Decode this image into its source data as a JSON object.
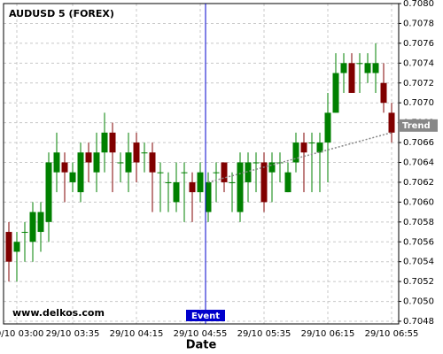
{
  "chart_data": {
    "type": "candlestick",
    "title": "AUDUSD 5 (FOREX)",
    "watermark": "www.delkos.com",
    "x_label": "Date",
    "categories": [
      null,
      "29/10 03:00",
      null,
      null,
      null,
      null,
      null,
      null,
      "29/10 03:35",
      null,
      null,
      null,
      null,
      null,
      null,
      null,
      "29/10 04:15",
      null,
      null,
      null,
      null,
      null,
      null,
      null,
      "29/10 04:55",
      null,
      null,
      null,
      null,
      null,
      null,
      null,
      "29/10 05:35",
      null,
      null,
      null,
      null,
      null,
      null,
      null,
      "29/10 06:15",
      null,
      null,
      null,
      null,
      null,
      null,
      null,
      "29/10 06:55"
    ],
    "open": [
      0.7057,
      0.7055,
      0.7057,
      0.7056,
      0.7057,
      0.7058,
      0.7063,
      0.7064,
      0.7062,
      0.7061,
      0.7065,
      0.7063,
      0.7065,
      0.7067,
      0.7064,
      0.7063,
      0.7066,
      0.7065,
      0.7065,
      0.7063,
      0.7062,
      0.706,
      0.7063,
      0.7062,
      0.7061,
      0.7059,
      0.7063,
      0.7064,
      0.7062,
      0.7059,
      0.7062,
      0.7064,
      0.7064,
      0.7063,
      0.7064,
      0.7061,
      0.7064,
      0.7066,
      0.7066,
      0.7065,
      0.7066,
      0.7069,
      0.7073,
      0.7074,
      0.7074,
      0.7073,
      0.7073,
      0.7072,
      0.7069
    ],
    "high": [
      0.7058,
      0.7057,
      0.7058,
      0.706,
      0.706,
      0.7065,
      0.7067,
      0.7065,
      0.7064,
      0.7066,
      0.7066,
      0.7067,
      0.7069,
      0.7068,
      0.7065,
      0.7067,
      0.7067,
      0.7066,
      0.7066,
      0.7064,
      0.7063,
      0.7064,
      0.7064,
      0.7063,
      0.7064,
      0.7063,
      0.7064,
      0.7064,
      0.7063,
      0.7065,
      0.7065,
      0.7065,
      0.7065,
      0.7065,
      0.7065,
      0.7064,
      0.7067,
      0.7067,
      0.7067,
      0.7067,
      0.7071,
      0.7075,
      0.7075,
      0.7075,
      0.7075,
      0.7075,
      0.7076,
      0.7074,
      0.707
    ],
    "low": [
      0.7052,
      0.7052,
      0.7054,
      0.7054,
      0.7055,
      0.7056,
      0.7061,
      0.706,
      0.7061,
      0.706,
      0.7062,
      0.7061,
      0.7063,
      0.7061,
      0.7062,
      0.7061,
      0.7062,
      0.7063,
      0.7059,
      0.7059,
      0.7059,
      0.7059,
      0.7058,
      0.7058,
      0.706,
      0.7058,
      0.706,
      0.7061,
      0.7059,
      0.7058,
      0.706,
      0.7061,
      0.7059,
      0.706,
      0.7062,
      0.7061,
      0.7063,
      0.7061,
      0.7061,
      0.7061,
      0.7062,
      0.7069,
      0.7071,
      0.7071,
      0.7071,
      0.7072,
      0.7071,
      0.7069,
      0.7066
    ],
    "close": [
      0.7054,
      0.7056,
      0.7057,
      0.7059,
      0.7059,
      0.7064,
      0.7065,
      0.7063,
      0.7063,
      0.7065,
      0.7064,
      0.7065,
      0.7067,
      0.7065,
      0.7064,
      0.7065,
      0.7064,
      0.7065,
      0.7063,
      0.7063,
      0.7062,
      0.7062,
      0.7063,
      0.7061,
      0.7063,
      0.7062,
      0.7063,
      0.7062,
      0.7062,
      0.7064,
      0.7064,
      0.7064,
      0.706,
      0.7064,
      0.7064,
      0.7063,
      0.7066,
      0.7065,
      0.7066,
      0.7066,
      0.7069,
      0.7073,
      0.7074,
      0.7071,
      0.7074,
      0.7074,
      0.7074,
      0.707,
      0.7067
    ],
    "up_color": "#008000",
    "down_color": "#800000",
    "trend": {
      "name": "Trend",
      "color": "#888888",
      "values": [
        null,
        null,
        null,
        null,
        null,
        null,
        null,
        null,
        null,
        null,
        null,
        null,
        null,
        null,
        null,
        null,
        null,
        null,
        null,
        null,
        null,
        null,
        null,
        null,
        null,
        0.7062,
        null,
        null,
        null,
        null,
        null,
        null,
        null,
        null,
        null,
        null,
        null,
        null,
        null,
        null,
        null,
        null,
        null,
        null,
        null,
        null,
        null,
        null,
        0.7067
      ]
    },
    "event": {
      "label": "Event",
      "category": "29/10 04:55",
      "color": "#0000cc"
    },
    "ylim": [
      0.7048,
      0.708
    ],
    "yticks": [
      0.7048,
      {
        "value": 0.705,
        "label": "0.7050"
      },
      0.7052,
      0.7054,
      0.7056,
      0.7058,
      {
        "value": 0.706,
        "label": "0.7060"
      },
      0.7062,
      0.7064,
      0.7066,
      0.7068,
      {
        "value": 0.707,
        "label": "0.7070"
      },
      0.7072,
      0.7074,
      0.7076,
      0.7078,
      {
        "value": 0.708,
        "label": "0.7080"
      }
    ],
    "grid": true
  }
}
